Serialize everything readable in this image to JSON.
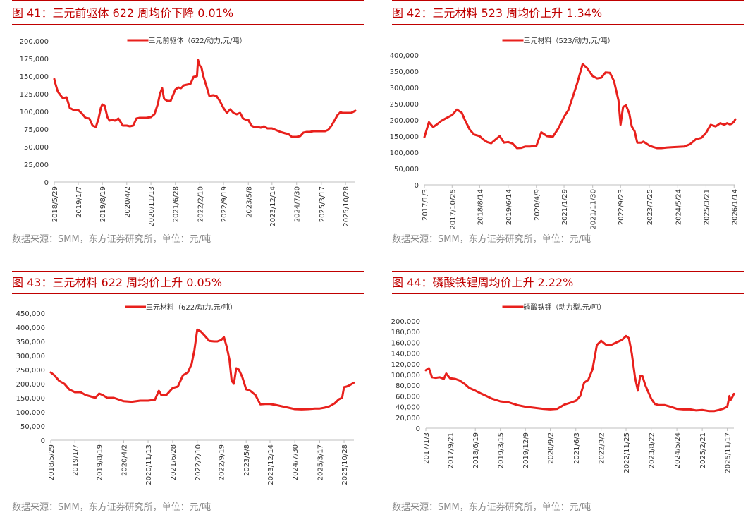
{
  "colors": {
    "accent": "#c00000",
    "series": "#e8201c",
    "axis": "#bfbfbf",
    "source": "#888888"
  },
  "panels": [
    {
      "title": "图 41：三元前驱体 622 周均价下降 0.01%",
      "source": "数据来源：SMM，东方证券研究所，单位：元/吨",
      "chart_data": {
        "type": "line",
        "legend": "三元前驱体（622/动力,元/吨）",
        "legend_position": "top-center",
        "grid": false,
        "ylim": [
          0,
          200000
        ],
        "yticks": [
          0,
          25000,
          50000,
          75000,
          100000,
          125000,
          150000,
          175000,
          200000
        ],
        "ytick_labels": [
          "0",
          "25,000",
          "50,000",
          "75,000",
          "100,000",
          "125,000",
          "150,000",
          "175,000",
          "200,000"
        ],
        "xlim": [
          "2018/5/29",
          "2026/1/27"
        ],
        "xtick_labels": [
          "2018/5/29",
          "2019/1/7",
          "2019/8/19",
          "2020/4/2",
          "2020/11/13",
          "2021/6/28",
          "2022/2/10",
          "2022/9/19",
          "2023/5/8",
          "2023/12/14",
          "2024/7/30",
          "2025/3/17",
          "2025/10/28"
        ],
        "x": [
          "2018/5/29",
          "2018/6/5",
          "2018/7/1",
          "2018/8/15",
          "2018/9/20",
          "2018/10/20",
          "2018/11/25",
          "2019/1/7",
          "2019/2/10",
          "2019/3/15",
          "2019/4/20",
          "2019/5/20",
          "2019/6/20",
          "2019/7/15",
          "2019/8/5",
          "2019/8/19",
          "2019/9/10",
          "2019/10/5",
          "2019/10/25",
          "2019/11/15",
          "2019/12/15",
          "2020/1/15",
          "2020/2/5",
          "2020/2/25",
          "2020/3/20",
          "2020/4/2",
          "2020/5/1",
          "2020/6/1",
          "2020/7/1",
          "2020/8/1",
          "2020/9/1",
          "2020/10/1",
          "2020/11/13",
          "2020/12/15",
          "2021/1/15",
          "2021/2/5",
          "2021/2/25",
          "2021/3/15",
          "2021/4/15",
          "2021/5/15",
          "2021/6/28",
          "2021/7/25",
          "2021/8/20",
          "2021/9/15",
          "2021/10/15",
          "2021/11/15",
          "2021/12/15",
          "2022/1/15",
          "2022/1/25",
          "2022/2/10",
          "2022/2/25",
          "2022/3/15",
          "2022/4/15",
          "2022/5/10",
          "2022/6/15",
          "2022/7/15",
          "2022/8/15",
          "2022/9/19",
          "2022/10/20",
          "2022/11/20",
          "2022/12/20",
          "2023/1/20",
          "2023/2/20",
          "2023/3/20",
          "2023/4/20",
          "2023/5/8",
          "2023/6/5",
          "2023/7/1",
          "2023/8/1",
          "2023/9/1",
          "2023/10/1",
          "2023/11/1",
          "2023/12/14",
          "2024/1/15",
          "2024/3/1",
          "2024/4/15",
          "2024/5/15",
          "2024/6/15",
          "2024/7/30",
          "2024/9/1",
          "2024/10/1",
          "2024/11/1",
          "2024/12/1",
          "2025/1/1",
          "2025/2/1",
          "2025/3/17",
          "2025/4/20",
          "2025/5/20",
          "2025/6/20",
          "2025/7/20",
          "2025/8/15",
          "2025/9/10",
          "2025/10/1",
          "2025/10/28",
          "2025/11/20",
          "2025/12/20",
          "2026/1/27"
        ],
        "values": [
          146000,
          141000,
          128000,
          119000,
          120000,
          105000,
          102000,
          102000,
          97000,
          91000,
          90000,
          80000,
          78000,
          90000,
          105000,
          110000,
          108000,
          92000,
          87000,
          88000,
          87000,
          90000,
          85000,
          80000,
          80000,
          80000,
          79000,
          80000,
          90000,
          91000,
          91000,
          91000,
          92000,
          96000,
          110000,
          125000,
          133000,
          118000,
          115000,
          115000,
          131000,
          134000,
          133000,
          137000,
          138000,
          139000,
          149000,
          150000,
          173000,
          165000,
          163000,
          150000,
          135000,
          122000,
          123000,
          122000,
          115000,
          105000,
          98000,
          103000,
          98000,
          96000,
          98000,
          90000,
          88000,
          88000,
          80000,
          78000,
          78000,
          77000,
          79000,
          76000,
          76000,
          74000,
          71000,
          69000,
          68000,
          64000,
          64000,
          65000,
          70000,
          71000,
          71000,
          72000,
          72000,
          72000,
          72000,
          74000,
          80000,
          88000,
          95000,
          99000,
          98000,
          98000,
          98000,
          98000,
          101000
        ]
      }
    },
    {
      "title": "图 42：三元材料 523 周均价上升 1.34%",
      "source": "数据来源：SMM，东方证券研究所，单位：元/吨",
      "chart_data": {
        "type": "line",
        "legend": "三元材料（523/动力,元/吨）",
        "legend_position": "top-center",
        "grid": false,
        "ylim": [
          0,
          400000
        ],
        "yticks": [
          0,
          50000,
          100000,
          150000,
          200000,
          250000,
          300000,
          350000,
          400000
        ],
        "ytick_labels": [
          "0",
          "50,000",
          "100,000",
          "150,000",
          "200,000",
          "250,000",
          "300,000",
          "350,000",
          "400,000"
        ],
        "xlim": [
          "2017/1/3",
          "2026/1/27"
        ],
        "xtick_labels": [
          "2017/1/3",
          "2017/10/25",
          "2018/8/14",
          "2019/6/14",
          "2020/4/9",
          "2021/1/29",
          "2021/11/30",
          "2022/9/23",
          "2023/7/25",
          "2024/5/24",
          "2025/3/21",
          "2026/1/14"
        ],
        "x": [
          "2017/1/3",
          "2017/2/20",
          "2017/4/5",
          "2017/5/20",
          "2017/7/1",
          "2017/8/20",
          "2017/10/25",
          "2017/12/15",
          "2018/2/5",
          "2018/3/10",
          "2018/5/1",
          "2018/6/15",
          "2018/8/14",
          "2018/9/20",
          "2018/11/1",
          "2018/12/15",
          "2019/2/1",
          "2019/3/15",
          "2019/5/1",
          "2019/6/14",
          "2019/8/1",
          "2019/9/15",
          "2019/11/1",
          "2019/12/15",
          "2020/2/1",
          "2020/4/9",
          "2020/6/1",
          "2020/8/1",
          "2020/10/1",
          "2020/12/1",
          "2021/1/29",
          "2021/3/15",
          "2021/5/1",
          "2021/6/15",
          "2021/8/15",
          "2021/10/1",
          "2021/11/30",
          "2022/1/15",
          "2022/3/1",
          "2022/4/15",
          "2022/6/1",
          "2022/7/15",
          "2022/9/1",
          "2022/9/23",
          "2022/10/20",
          "2022/11/20",
          "2022/12/25",
          "2023/1/20",
          "2023/2/20",
          "2023/3/20",
          "2023/4/10",
          "2023/5/1",
          "2023/5/25",
          "2023/6/20",
          "2023/7/25",
          "2023/9/1",
          "2023/10/15",
          "2023/12/1",
          "2024/2/1",
          "2024/4/1",
          "2024/5/24",
          "2024/8/1",
          "2024/10/1",
          "2024/12/1",
          "2025/2/1",
          "2025/3/21",
          "2025/5/10",
          "2025/7/1",
          "2025/8/20",
          "2025/10/1",
          "2025/11/1",
          "2025/12/1",
          "2025/12/20",
          "2026/1/14",
          "2026/1/27"
        ],
        "values": [
          147000,
          193000,
          178000,
          187000,
          197000,
          205000,
          215000,
          232000,
          222000,
          200000,
          170000,
          155000,
          150000,
          140000,
          132000,
          128000,
          140000,
          150000,
          130000,
          132000,
          127000,
          113000,
          114000,
          118000,
          118000,
          120000,
          162000,
          150000,
          148000,
          175000,
          210000,
          230000,
          270000,
          310000,
          372000,
          360000,
          335000,
          328000,
          330000,
          346000,
          345000,
          320000,
          260000,
          185000,
          240000,
          245000,
          220000,
          180000,
          165000,
          130000,
          130000,
          130000,
          133000,
          128000,
          121000,
          117000,
          113000,
          113000,
          115000,
          116000,
          117000,
          118000,
          125000,
          140000,
          145000,
          160000,
          185000,
          180000,
          190000,
          185000,
          190000,
          186000,
          188000,
          195000,
          202000
        ]
      }
    },
    {
      "title": "图 43：三元材料 622 周均价上升 0.05%",
      "source": "数据来源：SMM，东方证券研究所，单位：元/吨",
      "chart_data": {
        "type": "line",
        "legend": "三元材料（622/动力,元/吨）",
        "legend_position": "top-center",
        "grid": false,
        "ylim": [
          0,
          450000
        ],
        "yticks": [
          0,
          50000,
          100000,
          150000,
          200000,
          250000,
          300000,
          350000,
          400000,
          450000
        ],
        "ytick_labels": [
          "0",
          "50,000",
          "100,000",
          "150,000",
          "200,000",
          "250,000",
          "300,000",
          "350,000",
          "400,000",
          "450,000"
        ],
        "xlim": [
          "2018/5/29",
          "2026/1/27"
        ],
        "xtick_labels": [
          "2018/5/29",
          "2019/1/7",
          "2019/8/19",
          "2020/4/2",
          "2020/11/13",
          "2021/6/28",
          "2022/2/10",
          "2022/9/19",
          "2023/5/8",
          "2023/12/14",
          "2024/7/30",
          "2025/3/17",
          "2025/10/28"
        ],
        "x": [
          "2018/5/29",
          "2018/7/1",
          "2018/8/15",
          "2018/10/1",
          "2018/11/15",
          "2019/1/7",
          "2019/3/1",
          "2019/4/15",
          "2019/6/1",
          "2019/7/15",
          "2019/8/19",
          "2019/9/20",
          "2019/11/1",
          "2020/1/1",
          "2020/4/2",
          "2020/6/15",
          "2020/9/1",
          "2020/11/13",
          "2021/1/15",
          "2021/2/20",
          "2021/3/15",
          "2021/5/1",
          "2021/6/28",
          "2021/8/15",
          "2021/10/1",
          "2021/11/15",
          "2021/12/20",
          "2022/1/15",
          "2022/2/10",
          "2022/3/15",
          "2022/4/20",
          "2022/6/1",
          "2022/7/15",
          "2022/8/15",
          "2022/9/19",
          "2022/10/15",
          "2022/11/10",
          "2022/12/5",
          "2022/12/25",
          "2023/1/15",
          "2023/2/5",
          "2023/3/1",
          "2023/4/1",
          "2023/5/8",
          "2023/6/15",
          "2023/8/1",
          "2023/9/15",
          "2023/11/1",
          "2023/12/14",
          "2024/2/1",
          "2024/4/1",
          "2024/6/1",
          "2024/7/30",
          "2024/10/1",
          "2024/12/1",
          "2025/2/1",
          "2025/3/17",
          "2025/5/1",
          "2025/6/15",
          "2025/8/1",
          "2025/9/10",
          "2025/10/10",
          "2025/10/28",
          "2025/11/20",
          "2025/12/20",
          "2026/1/27"
        ],
        "values": [
          240000,
          230000,
          210000,
          200000,
          180000,
          170000,
          170000,
          160000,
          155000,
          150000,
          165000,
          160000,
          150000,
          150000,
          138000,
          136000,
          140000,
          140000,
          143000,
          175000,
          160000,
          160000,
          185000,
          190000,
          230000,
          240000,
          270000,
          320000,
          392000,
          385000,
          370000,
          352000,
          350000,
          350000,
          355000,
          365000,
          330000,
          285000,
          210000,
          200000,
          255000,
          250000,
          225000,
          180000,
          175000,
          160000,
          127000,
          128000,
          128000,
          125000,
          120000,
          115000,
          110000,
          109000,
          110000,
          112000,
          112000,
          115000,
          120000,
          130000,
          145000,
          150000,
          188000,
          190000,
          195000,
          204000
        ]
      }
    },
    {
      "title": "图 44：磷酸铁锂周均价上升 2.22%",
      "source": "数据来源：SMM，东方证券研究所，单位：元/吨",
      "chart_data": {
        "type": "line",
        "legend": "磷酸铁锂（动力型,元/吨）",
        "legend_position": "top-center",
        "grid": false,
        "ylim": [
          0,
          200000
        ],
        "yticks": [
          0,
          20000,
          40000,
          60000,
          80000,
          100000,
          120000,
          140000,
          160000,
          180000,
          200000
        ],
        "ytick_labels": [
          "0",
          "20,000",
          "40,000",
          "60,000",
          "80,000",
          "100,000",
          "120,000",
          "140,000",
          "160,000",
          "180,000",
          "200,000"
        ],
        "xlim": [
          "2017/1/3",
          "2026/1/27"
        ],
        "xtick_labels": [
          "2017/1/3",
          "2017/9/21",
          "2018/6/19",
          "2019/3/15",
          "2019/12/9",
          "2020/9/2",
          "2021/6/3",
          "2022/3/2",
          "2022/11/25",
          "2023/8/22",
          "2024/5/24",
          "2025/2/21",
          "2025/11/17"
        ],
        "x": [
          "2017/1/3",
          "2017/2/5",
          "2017/3/10",
          "2017/4/20",
          "2017/6/1",
          "2017/7/15",
          "2017/8/10",
          "2017/9/21",
          "2017/11/15",
          "2018/1/1",
          "2018/3/1",
          "2018/4/15",
          "2018/6/19",
          "2018/8/15",
          "2018/10/15",
          "2018/12/15",
          "2019/3/15",
          "2019/6/15",
          "2019/9/15",
          "2019/12/9",
          "2020/3/15",
          "2020/6/15",
          "2020/9/2",
          "2020/11/15",
          "2021/2/1",
          "2021/4/15",
          "2021/6/3",
          "2021/7/20",
          "2021/9/1",
          "2021/10/15",
          "2021/11/30",
          "2022/1/15",
          "2022/3/2",
          "2022/4/20",
          "2022/6/15",
          "2022/8/15",
          "2022/10/15",
          "2022/11/25",
          "2022/12/25",
          "2023/1/25",
          "2023/3/1",
          "2023/4/1",
          "2023/4/25",
          "2023/5/20",
          "2023/6/20",
          "2023/7/20",
          "2023/8/22",
          "2023/10/1",
          "2023/11/15",
          "2024/1/15",
          "2024/3/15",
          "2024/5/24",
          "2024/8/1",
          "2024/10/15",
          "2024/12/15",
          "2025/2/21",
          "2025/5/1",
          "2025/7/1",
          "2025/8/20",
          "2025/10/1",
          "2025/11/17",
          "2025/12/10",
          "2025/12/20",
          "2026/1/10",
          "2026/1/27"
        ],
        "values": [
          108000,
          112000,
          95000,
          94000,
          95000,
          92000,
          102000,
          93000,
          92000,
          89000,
          82000,
          75000,
          70000,
          65000,
          60000,
          55000,
          50000,
          48000,
          43000,
          40000,
          38000,
          36000,
          35000,
          36000,
          44000,
          48000,
          51000,
          60000,
          85000,
          90000,
          110000,
          155000,
          163000,
          156000,
          155000,
          160000,
          165000,
          172000,
          168000,
          140000,
          95000,
          70000,
          97000,
          97000,
          80000,
          68000,
          55000,
          45000,
          43000,
          43000,
          40000,
          36000,
          35000,
          35000,
          33000,
          34000,
          32000,
          32000,
          34000,
          36000,
          40000,
          60000,
          52000,
          58000,
          64000
        ]
      }
    }
  ]
}
